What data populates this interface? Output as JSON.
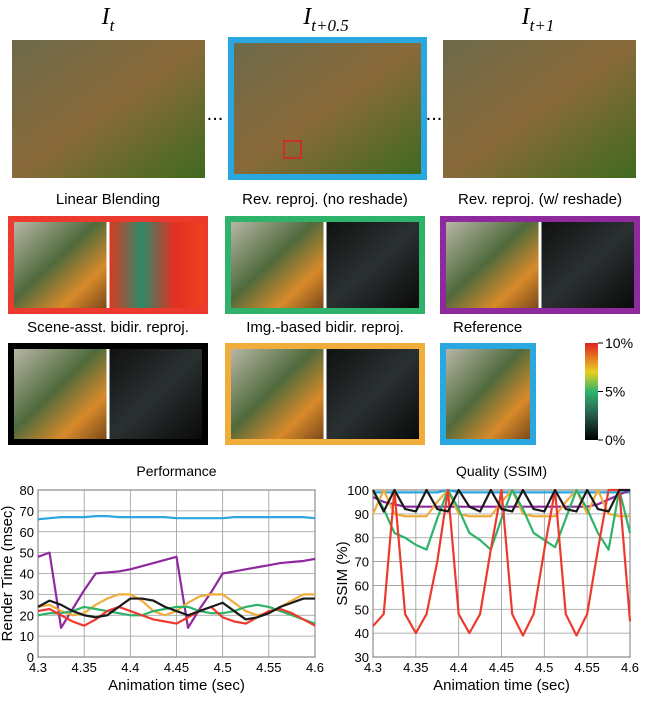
{
  "frame_labels": [
    {
      "symbol": "I",
      "subscript": "t"
    },
    {
      "symbol": "I",
      "subscript": "t+0.5"
    },
    {
      "symbol": "I",
      "subscript": "t+1"
    }
  ],
  "ellipsis": "...",
  "panels": [
    "Linear Blending",
    "Rev. reproj. (no reshade)",
    "Rev. reproj. (w/ reshade)",
    "Scene-asst. bidir. reproj.",
    "Img.-based bidir. reproj.",
    "Reference"
  ],
  "colorbar": {
    "lim": [
      0,
      10
    ],
    "ticks": [
      {
        "value": 10,
        "label": "10%"
      },
      {
        "value": 5,
        "label": "5%"
      },
      {
        "value": 0,
        "label": "0%"
      }
    ]
  },
  "chart_data": [
    {
      "type": "line",
      "title": "Performance",
      "x_label": "Animation time (sec)",
      "y_label": "Render Time (msec)",
      "x": [
        4.3,
        4.3125,
        4.325,
        4.3375,
        4.35,
        4.3625,
        4.375,
        4.3875,
        4.4,
        4.4125,
        4.425,
        4.4375,
        4.45,
        4.4625,
        4.475,
        4.4875,
        4.5,
        4.5125,
        4.525,
        4.5375,
        4.55,
        4.5625,
        4.575,
        4.5875,
        4.6
      ],
      "xlim": [
        4.3,
        4.6
      ],
      "xticks": [
        4.3,
        4.35,
        4.4,
        4.45,
        4.5,
        4.55,
        4.6
      ],
      "ylim": [
        0,
        80
      ],
      "yticks": [
        0,
        10,
        20,
        30,
        40,
        50,
        60,
        70,
        80
      ],
      "grid": true,
      "series": [
        {
          "color": "#2aa7de",
          "values": [
            66,
            66.5,
            67,
            67,
            67,
            67.5,
            67.5,
            67,
            67,
            67,
            67,
            67,
            66.5,
            66.5,
            66.5,
            66.5,
            66.5,
            67,
            67,
            67,
            67,
            67,
            67,
            67,
            66.5
          ]
        },
        {
          "color": "#8e2a9e",
          "values": [
            48,
            50,
            14,
            23,
            32,
            40,
            40.5,
            41,
            42,
            43.5,
            45,
            46.5,
            48,
            14,
            23,
            31,
            40,
            41,
            42,
            43,
            44,
            45,
            45.5,
            46,
            47
          ]
        },
        {
          "color": "#f0ad3c",
          "values": [
            24,
            25,
            22,
            20,
            21,
            25,
            28,
            30,
            30,
            27,
            22,
            20,
            22,
            26,
            29,
            30,
            30,
            26,
            22,
            20,
            21,
            24,
            27,
            30,
            30
          ]
        },
        {
          "color": "#2fb36b",
          "values": [
            20,
            21,
            21,
            22,
            24,
            23,
            22,
            21,
            20,
            20,
            22,
            23,
            24,
            24,
            22,
            21,
            21,
            22,
            24,
            25,
            24,
            22,
            20,
            18,
            16
          ]
        },
        {
          "color": "#ec3b2e",
          "values": [
            22,
            23,
            20,
            17,
            15,
            18,
            22,
            24,
            22,
            20,
            18,
            17,
            16,
            19,
            22,
            24,
            19,
            17,
            16,
            19,
            22,
            23,
            21,
            18,
            15
          ]
        },
        {
          "color": "#1a1a1a",
          "values": [
            24,
            27,
            25,
            22,
            20,
            19,
            20,
            24,
            28,
            28,
            27,
            24,
            22,
            20,
            22,
            24,
            26,
            22,
            18,
            19,
            21,
            24,
            26,
            28,
            28
          ]
        }
      ]
    },
    {
      "type": "line",
      "title": "Quality (SSIM)",
      "x_label": "Animation time (sec)",
      "y_label": "SSIM (%)",
      "x": [
        4.3,
        4.3125,
        4.325,
        4.3375,
        4.35,
        4.3625,
        4.375,
        4.3875,
        4.4,
        4.4125,
        4.425,
        4.4375,
        4.45,
        4.4625,
        4.475,
        4.4875,
        4.5,
        4.5125,
        4.525,
        4.5375,
        4.55,
        4.5625,
        4.575,
        4.5875,
        4.6
      ],
      "xlim": [
        4.3,
        4.6
      ],
      "xticks": [
        4.3,
        4.35,
        4.4,
        4.45,
        4.5,
        4.55,
        4.6
      ],
      "ylim": [
        30,
        100
      ],
      "yticks": [
        30,
        40,
        50,
        60,
        70,
        80,
        90,
        100
      ],
      "grid": true,
      "series": [
        {
          "color": "#2aa7de",
          "values": [
            99,
            99,
            99,
            99,
            99,
            99,
            99,
            100,
            99,
            99,
            99,
            99,
            99,
            99,
            99,
            99,
            99,
            99,
            99,
            99,
            99,
            99,
            99,
            99,
            99
          ]
        },
        {
          "color": "#8e2a9e",
          "values": [
            97,
            95,
            94,
            93,
            93,
            93,
            93,
            93,
            93,
            93,
            93,
            93,
            93,
            93,
            93,
            93,
            93,
            93,
            93,
            93,
            93,
            94,
            96,
            98,
            100
          ]
        },
        {
          "color": "#f0ad3c",
          "values": [
            90,
            100,
            90,
            89,
            89,
            89,
            95,
            100,
            90,
            89,
            89,
            89,
            95,
            100,
            90,
            89,
            89,
            89,
            95,
            100,
            90,
            100,
            90,
            89,
            89
          ]
        },
        {
          "color": "#2fb36b",
          "values": [
            100,
            92,
            82,
            80,
            77,
            75,
            88,
            100,
            92,
            82,
            79,
            75,
            88,
            100,
            92,
            82,
            79,
            76,
            88,
            100,
            92,
            82,
            75,
            100,
            82
          ]
        },
        {
          "color": "#ec3b2e",
          "values": [
            43,
            48,
            100,
            48,
            40,
            48,
            70,
            100,
            48,
            40,
            48,
            75,
            100,
            48,
            39,
            48,
            75,
            100,
            48,
            39,
            48,
            75,
            100,
            100,
            45
          ]
        },
        {
          "color": "#1a1a1a",
          "values": [
            100,
            91,
            100,
            92,
            91,
            100,
            92,
            91,
            100,
            93,
            91,
            100,
            92,
            91,
            100,
            92,
            91,
            100,
            92,
            91,
            100,
            92,
            91,
            100,
            100
          ]
        }
      ]
    }
  ]
}
